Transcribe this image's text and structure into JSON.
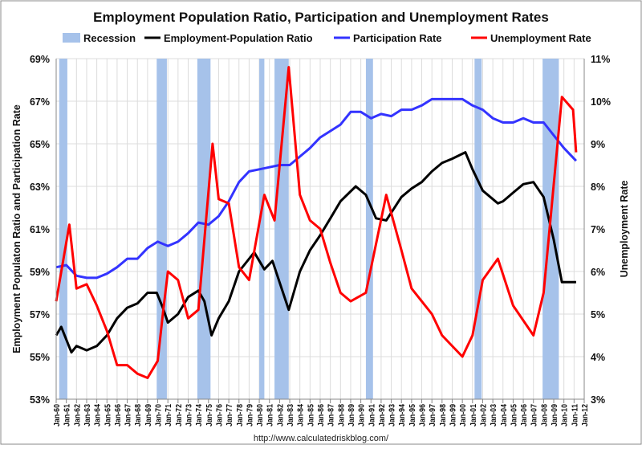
{
  "chart_data": {
    "type": "line",
    "title": "Employment Population Ratio, Participation and Unemployment Rates",
    "ylabel_left": "Employment Populaton Ratio and Participation Rate",
    "ylabel_right": "Unemployment Rate",
    "source": "http://www.calculatedriskblog.com/",
    "ylim_left": [
      53,
      69
    ],
    "ylim_right": [
      3,
      11
    ],
    "xlim": [
      1960,
      2012
    ],
    "yticks_left": [
      "53%",
      "55%",
      "57%",
      "59%",
      "61%",
      "63%",
      "65%",
      "67%",
      "69%"
    ],
    "yticks_right": [
      "3%",
      "4%",
      "5%",
      "6%",
      "7%",
      "8%",
      "9%",
      "10%",
      "11%"
    ],
    "xticks": [
      "Jan-60",
      "Jan-61",
      "Jan-62",
      "Jan-63",
      "Jan-64",
      "Jan-65",
      "Jan-66",
      "Jan-67",
      "Jan-68",
      "Jan-69",
      "Jan-70",
      "Jan-71",
      "Jan-72",
      "Jan-73",
      "Jan-74",
      "Jan-75",
      "Jan-76",
      "Jan-77",
      "Jan-78",
      "Jan-79",
      "Jan-80",
      "Jan-81",
      "Jan-82",
      "Jan-83",
      "Jan-84",
      "Jan-85",
      "Jan-86",
      "Jan-87",
      "Jan-88",
      "Jan-89",
      "Jan-90",
      "Jan-91",
      "Jan-92",
      "Jan-93",
      "Jan-94",
      "Jan-95",
      "Jan-96",
      "Jan-97",
      "Jan-98",
      "Jan-99",
      "Jan-00",
      "Jan-01",
      "Jan-02",
      "Jan-03",
      "Jan-04",
      "Jan-05",
      "Jan-06",
      "Jan-07",
      "Jan-08",
      "Jan-09",
      "Jan-10",
      "Jan-11",
      "Jan-12"
    ],
    "grid": true,
    "legend_placement": "top",
    "legend": [
      "Recession",
      "Employment-Population Ratio",
      "Participation Rate",
      "Unemployment Rate"
    ],
    "recessions": [
      [
        1960.3,
        1961.1
      ],
      [
        1969.9,
        1970.9
      ],
      [
        1973.9,
        1975.2
      ],
      [
        1980.0,
        1980.5
      ],
      [
        1981.5,
        1982.9
      ],
      [
        1990.5,
        1991.2
      ],
      [
        2001.2,
        2001.9
      ],
      [
        2007.9,
        2009.5
      ]
    ],
    "series": [
      {
        "name": "Employment-Population Ratio",
        "axis": "left",
        "color": "#000000",
        "points": [
          [
            1960,
            56.0
          ],
          [
            1960.5,
            56.4
          ],
          [
            1961.5,
            55.2
          ],
          [
            1962,
            55.5
          ],
          [
            1963,
            55.3
          ],
          [
            1964,
            55.5
          ],
          [
            1965,
            56.0
          ],
          [
            1966,
            56.8
          ],
          [
            1967,
            57.3
          ],
          [
            1968,
            57.5
          ],
          [
            1969,
            58.0
          ],
          [
            1969.9,
            58.0
          ],
          [
            1970.5,
            57.3
          ],
          [
            1971,
            56.6
          ],
          [
            1972,
            57.0
          ],
          [
            1973,
            57.8
          ],
          [
            1974,
            58.1
          ],
          [
            1974.6,
            57.6
          ],
          [
            1975.3,
            56.0
          ],
          [
            1976,
            56.8
          ],
          [
            1977,
            57.6
          ],
          [
            1978,
            59.0
          ],
          [
            1979.5,
            59.9
          ],
          [
            1980.5,
            59.1
          ],
          [
            1981.3,
            59.5
          ],
          [
            1982.9,
            57.2
          ],
          [
            1984,
            59.0
          ],
          [
            1985,
            60.0
          ],
          [
            1986,
            60.7
          ],
          [
            1987,
            61.5
          ],
          [
            1988,
            62.3
          ],
          [
            1989.5,
            63.0
          ],
          [
            1990.5,
            62.6
          ],
          [
            1991.5,
            61.5
          ],
          [
            1992.5,
            61.4
          ],
          [
            1994,
            62.5
          ],
          [
            1995,
            62.9
          ],
          [
            1996,
            63.2
          ],
          [
            1997,
            63.7
          ],
          [
            1998,
            64.1
          ],
          [
            1999,
            64.3
          ],
          [
            2000.3,
            64.6
          ],
          [
            2001,
            63.8
          ],
          [
            2002,
            62.8
          ],
          [
            2003.5,
            62.2
          ],
          [
            2004,
            62.3
          ],
          [
            2005,
            62.7
          ],
          [
            2006,
            63.1
          ],
          [
            2007,
            63.2
          ],
          [
            2008,
            62.5
          ],
          [
            2009,
            60.5
          ],
          [
            2009.8,
            58.5
          ],
          [
            2010.5,
            58.5
          ],
          [
            2011.2,
            58.5
          ]
        ]
      },
      {
        "name": "Participation Rate",
        "axis": "left",
        "color": "#3333ff",
        "points": [
          [
            1960,
            59.2
          ],
          [
            1961,
            59.3
          ],
          [
            1962,
            58.8
          ],
          [
            1963,
            58.7
          ],
          [
            1964,
            58.7
          ],
          [
            1965,
            58.9
          ],
          [
            1966,
            59.2
          ],
          [
            1967,
            59.6
          ],
          [
            1968,
            59.6
          ],
          [
            1969,
            60.1
          ],
          [
            1970,
            60.4
          ],
          [
            1971,
            60.2
          ],
          [
            1972,
            60.4
          ],
          [
            1973,
            60.8
          ],
          [
            1974,
            61.3
          ],
          [
            1975,
            61.2
          ],
          [
            1976,
            61.6
          ],
          [
            1977,
            62.3
          ],
          [
            1978,
            63.2
          ],
          [
            1979,
            63.7
          ],
          [
            1980,
            63.8
          ],
          [
            1981,
            63.9
          ],
          [
            1982,
            64.0
          ],
          [
            1983,
            64.0
          ],
          [
            1984,
            64.4
          ],
          [
            1985,
            64.8
          ],
          [
            1986,
            65.3
          ],
          [
            1987,
            65.6
          ],
          [
            1988,
            65.9
          ],
          [
            1989,
            66.5
          ],
          [
            1990,
            66.5
          ],
          [
            1991,
            66.2
          ],
          [
            1992,
            66.4
          ],
          [
            1993,
            66.3
          ],
          [
            1994,
            66.6
          ],
          [
            1995,
            66.6
          ],
          [
            1996,
            66.8
          ],
          [
            1997,
            67.1
          ],
          [
            1998,
            67.1
          ],
          [
            1999,
            67.1
          ],
          [
            2000,
            67.1
          ],
          [
            2001,
            66.8
          ],
          [
            2002,
            66.6
          ],
          [
            2003,
            66.2
          ],
          [
            2004,
            66.0
          ],
          [
            2005,
            66.0
          ],
          [
            2006,
            66.2
          ],
          [
            2007,
            66.0
          ],
          [
            2008,
            66.0
          ],
          [
            2009,
            65.4
          ],
          [
            2010,
            64.8
          ],
          [
            2011.2,
            64.2
          ]
        ]
      },
      {
        "name": "Unemployment Rate",
        "axis": "right",
        "color": "#ff0000",
        "points": [
          [
            1960,
            5.3
          ],
          [
            1961.3,
            7.1
          ],
          [
            1962,
            5.6
          ],
          [
            1963,
            5.7
          ],
          [
            1964,
            5.2
          ],
          [
            1965,
            4.6
          ],
          [
            1966,
            3.8
          ],
          [
            1967,
            3.8
          ],
          [
            1968,
            3.6
          ],
          [
            1969,
            3.5
          ],
          [
            1970,
            3.9
          ],
          [
            1970.5,
            5.0
          ],
          [
            1971,
            6.0
          ],
          [
            1972,
            5.8
          ],
          [
            1973,
            4.9
          ],
          [
            1974,
            5.1
          ],
          [
            1975.4,
            9.0
          ],
          [
            1976,
            7.7
          ],
          [
            1977,
            7.6
          ],
          [
            1978,
            6.1
          ],
          [
            1979,
            5.8
          ],
          [
            1980.5,
            7.8
          ],
          [
            1981.5,
            7.2
          ],
          [
            1982.9,
            10.8
          ],
          [
            1984,
            7.8
          ],
          [
            1985,
            7.2
          ],
          [
            1986,
            7.0
          ],
          [
            1987,
            6.2
          ],
          [
            1988,
            5.5
          ],
          [
            1989,
            5.3
          ],
          [
            1990.5,
            5.5
          ],
          [
            1992.5,
            7.8
          ],
          [
            1994,
            6.5
          ],
          [
            1995,
            5.6
          ],
          [
            1997,
            5.0
          ],
          [
            1998,
            4.5
          ],
          [
            2000,
            4.0
          ],
          [
            2001,
            4.5
          ],
          [
            2002,
            5.8
          ],
          [
            2003.5,
            6.3
          ],
          [
            2005,
            5.2
          ],
          [
            2007,
            4.5
          ],
          [
            2008,
            5.5
          ],
          [
            2009.8,
            10.1
          ],
          [
            2010.9,
            9.8
          ],
          [
            2011.2,
            8.8
          ]
        ]
      }
    ]
  }
}
